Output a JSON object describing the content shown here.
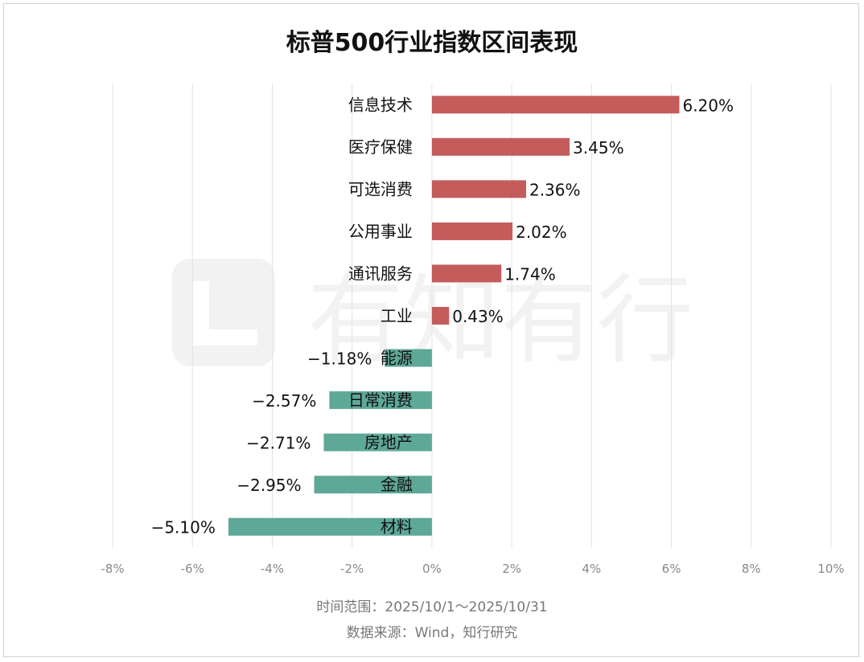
{
  "title": "标普500行业指数区间表现",
  "footer": {
    "time_range": "时间范围：2025/10/1～2025/10/31",
    "source": "数据来源：Wind，知行研究"
  },
  "watermark": {
    "text": "有知有行",
    "icon": "logo-mark-icon"
  },
  "colors": {
    "positive": "#c45c5c",
    "negative": "#5ea898",
    "grid": "#e2e2e2",
    "tick": "#888888"
  },
  "chart_data": {
    "type": "bar",
    "orientation": "horizontal",
    "categories": [
      "信息技术",
      "医疗保健",
      "可选消费",
      "公用事业",
      "通讯服务",
      "工业",
      "能源",
      "日常消费",
      "房地产",
      "金融",
      "材料"
    ],
    "values": [
      6.2,
      3.45,
      2.36,
      2.02,
      1.74,
      0.43,
      -1.18,
      -2.57,
      -2.71,
      -2.95,
      -5.1
    ],
    "value_labels": [
      "6.20%",
      "3.45%",
      "2.36%",
      "2.02%",
      "1.74%",
      "0.43%",
      "−1.18%",
      "−2.57%",
      "−2.71%",
      "−2.95%",
      "−5.10%"
    ],
    "xlim": [
      -8,
      10
    ],
    "xticks": [
      -8,
      -6,
      -4,
      -2,
      0,
      2,
      4,
      6,
      8,
      10
    ],
    "xtick_labels": [
      "-8%",
      "-6%",
      "-4%",
      "-2%",
      "0%",
      "2%",
      "4%",
      "6%",
      "8%",
      "10%"
    ],
    "grid": true,
    "title": "标普500行业指数区间表现"
  }
}
